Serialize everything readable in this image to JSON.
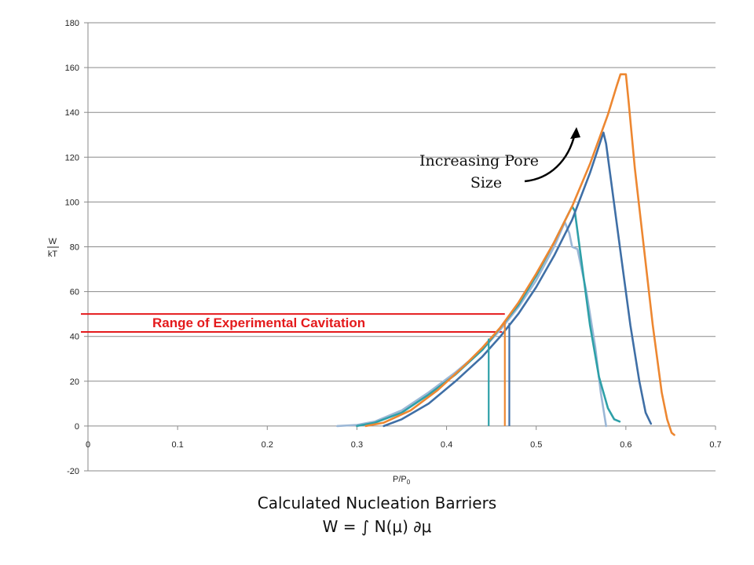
{
  "chart_data": {
    "type": "line",
    "title": "",
    "xlabel_main": "P/P",
    "xlabel_sub": "0",
    "ylabel_top": "W",
    "ylabel_bottom": "kT",
    "xlim": [
      0,
      0.7
    ],
    "ylim": [
      -20,
      180
    ],
    "x_ticks": [
      "0",
      "0.1",
      "0.2",
      "0.3",
      "0.4",
      "0.5",
      "0.6",
      "0.7"
    ],
    "y_ticks": [
      "-20",
      "0",
      "20",
      "40",
      "60",
      "80",
      "100",
      "120",
      "140",
      "160",
      "180"
    ],
    "grid": "horizontal",
    "legend": "none",
    "series": [
      {
        "color": "#9BB7D6",
        "points": [
          [
            0.278,
            0
          ],
          [
            0.3,
            0.5
          ],
          [
            0.32,
            2
          ],
          [
            0.35,
            7
          ],
          [
            0.38,
            15
          ],
          [
            0.41,
            24
          ],
          [
            0.44,
            34
          ],
          [
            0.46,
            43
          ],
          [
            0.48,
            53
          ],
          [
            0.5,
            65
          ],
          [
            0.52,
            80
          ],
          [
            0.532,
            91
          ],
          [
            0.537,
            86
          ],
          [
            0.54,
            80
          ],
          [
            0.546,
            79
          ],
          [
            0.556,
            60
          ],
          [
            0.566,
            35
          ],
          [
            0.572,
            15
          ],
          [
            0.578,
            0
          ]
        ]
      },
      {
        "color": "#2EA0A8",
        "points": [
          [
            0.3,
            0
          ],
          [
            0.32,
            1.5
          ],
          [
            0.35,
            6
          ],
          [
            0.38,
            14
          ],
          [
            0.41,
            23
          ],
          [
            0.44,
            34
          ],
          [
            0.46,
            44
          ],
          [
            0.48,
            54
          ],
          [
            0.5,
            67
          ],
          [
            0.52,
            82
          ],
          [
            0.54,
            98
          ],
          [
            0.543,
            96
          ],
          [
            0.55,
            75
          ],
          [
            0.56,
            45
          ],
          [
            0.57,
            22
          ],
          [
            0.58,
            8
          ],
          [
            0.587,
            3
          ],
          [
            0.593,
            2
          ]
        ]
      },
      {
        "color": "#3F6FA6",
        "points": [
          [
            0.33,
            0
          ],
          [
            0.35,
            3
          ],
          [
            0.38,
            10
          ],
          [
            0.41,
            20
          ],
          [
            0.44,
            31
          ],
          [
            0.46,
            40
          ],
          [
            0.48,
            50
          ],
          [
            0.5,
            62
          ],
          [
            0.52,
            76
          ],
          [
            0.54,
            92
          ],
          [
            0.56,
            113
          ],
          [
            0.575,
            131
          ],
          [
            0.578,
            126
          ],
          [
            0.585,
            105
          ],
          [
            0.595,
            75
          ],
          [
            0.605,
            45
          ],
          [
            0.615,
            20
          ],
          [
            0.622,
            6
          ],
          [
            0.628,
            1
          ]
        ]
      },
      {
        "color": "#ED8731",
        "points": [
          [
            0.31,
            0
          ],
          [
            0.33,
            1.5
          ],
          [
            0.36,
            7
          ],
          [
            0.39,
            16
          ],
          [
            0.42,
            27
          ],
          [
            0.44,
            35
          ],
          [
            0.46,
            44
          ],
          [
            0.48,
            55
          ],
          [
            0.5,
            68
          ],
          [
            0.52,
            82
          ],
          [
            0.54,
            98
          ],
          [
            0.56,
            117
          ],
          [
            0.58,
            139
          ],
          [
            0.59,
            152
          ],
          [
            0.594,
            157
          ],
          [
            0.6,
            157
          ],
          [
            0.603,
            145
          ],
          [
            0.61,
            115
          ],
          [
            0.62,
            80
          ],
          [
            0.63,
            45
          ],
          [
            0.64,
            15
          ],
          [
            0.646,
            3
          ],
          [
            0.651,
            -3
          ],
          [
            0.654,
            -4
          ]
        ]
      }
    ],
    "cavitation_drops": [
      {
        "x": 0.447,
        "y": 39,
        "color": "#2EA0A8"
      },
      {
        "x": 0.465,
        "y": 47,
        "color": "#ED8731"
      },
      {
        "x": 0.47,
        "y": 46,
        "color": "#3F6FA6"
      }
    ],
    "range_lines": [
      {
        "y": 50,
        "x_end": 0.465
      },
      {
        "y": 42,
        "x_end": 0.462
      }
    ],
    "range_color": "#E41A1C",
    "range_label": "Range of Experimental Cavitation",
    "annotation_lines": [
      "Increasing Pore",
      "Size"
    ]
  },
  "caption": {
    "line1": "Calculated Nucleation Barriers",
    "line2": "W = ∫ N(μ) ∂μ"
  }
}
